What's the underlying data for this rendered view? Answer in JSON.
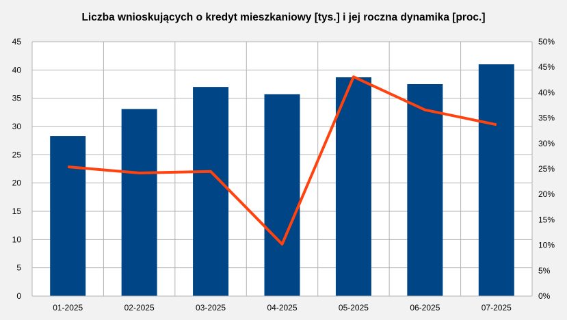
{
  "chart_data": {
    "type": "bar",
    "title": "Liczba wnioskujących o kredyt mieszkaniowy [tys.] i jej roczna dynamika [proc.]",
    "categories": [
      "01-2025",
      "02-2025",
      "03-2025",
      "04-2025",
      "05-2025",
      "06-2025",
      "07-2025"
    ],
    "series": [
      {
        "type": "bar",
        "axis": "left",
        "values": [
          28.3,
          33.1,
          37.0,
          35.7,
          38.7,
          37.5,
          41.0
        ],
        "color": "#004586"
      },
      {
        "type": "line",
        "axis": "right",
        "values": [
          25.4,
          24.2,
          24.5,
          10.2,
          43.1,
          36.6,
          33.7
        ],
        "color": "#ff420e"
      }
    ],
    "ylim": [
      0,
      45
    ],
    "yticks": [
      "0",
      "5",
      "10",
      "15",
      "20",
      "25",
      "30",
      "35",
      "40",
      "45"
    ],
    "y2lim": [
      0,
      50
    ],
    "y2ticks": [
      "0%",
      "5%",
      "10%",
      "15%",
      "20%",
      "25%",
      "30%",
      "35%",
      "40%",
      "45%",
      "50%"
    ],
    "grid": true,
    "legend": "none"
  }
}
